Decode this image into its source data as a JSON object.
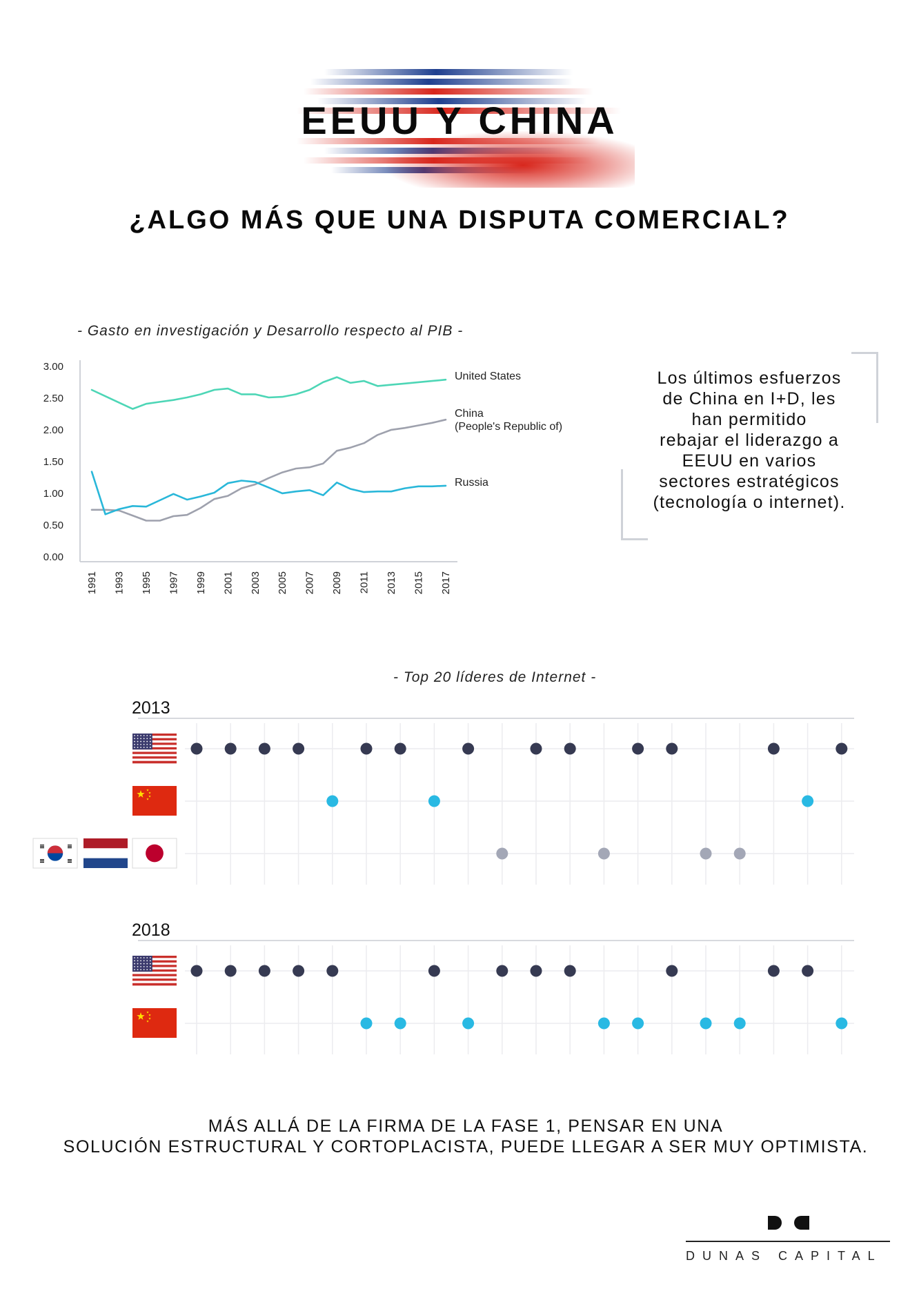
{
  "header": {
    "title": "EEUU Y CHINA",
    "subtitle": "¿ALGO MÁS QUE UNA DISPUTA COMERCIAL?",
    "colors": {
      "blue": "#1f3f8f",
      "red": "#d8261c"
    }
  },
  "rd_chart": {
    "caption": "- Gasto en investigación y Desarrollo respecto al PIB -"
  },
  "side_text": {
    "lines": [
      "Los últimos esfuerzos",
      "de China en I+D, les",
      "han permitido",
      "rebajar el liderazgo a",
      "EEUU en varios",
      "sectores estratégicos",
      "(tecnología o internet)."
    ]
  },
  "internet_chart": {
    "caption": "- Top 20 líderes de Internet -"
  },
  "bottom_text": {
    "line1": "MÁS ALLÁ DE LA FIRMA DE LA FASE 1, PENSAR EN UNA",
    "line2": "SOLUCIÓN ESTRUCTURAL Y CORTOPLACISTA, PUEDE LLEGAR A SER MUY OPTIMISTA."
  },
  "logo": {
    "mark": "DC",
    "text": "DUNAS CAPITAL"
  },
  "chart_data": [
    {
      "type": "line",
      "title": "- Gasto en investigación y Desarrollo respecto al PIB -",
      "xlabel": "",
      "ylabel": "",
      "ylim": [
        0,
        3
      ],
      "yticks": [
        "3.00",
        "2.50",
        "2.00",
        "1.50",
        "1.00",
        "0.50",
        "0.00"
      ],
      "x_tick_labels": [
        "1991",
        "1993",
        "1995",
        "1997",
        "1999",
        "2001",
        "2003",
        "2005",
        "2007",
        "2009",
        "2011",
        "2013",
        "2015",
        "2017"
      ],
      "x": [
        1991,
        1992,
        1993,
        1994,
        1995,
        1996,
        1997,
        1998,
        1999,
        2000,
        2001,
        2002,
        2003,
        2004,
        2005,
        2006,
        2007,
        2008,
        2009,
        2010,
        2011,
        2012,
        2013,
        2014,
        2015,
        2016,
        2017
      ],
      "series": [
        {
          "name": "United States",
          "label": "United States",
          "color": "#4dd6b6",
          "values": [
            2.62,
            2.52,
            2.42,
            2.32,
            2.4,
            2.43,
            2.46,
            2.5,
            2.55,
            2.62,
            2.64,
            2.55,
            2.55,
            2.5,
            2.51,
            2.55,
            2.62,
            2.74,
            2.82,
            2.73,
            2.76,
            2.68,
            2.7,
            2.72,
            2.74,
            2.76,
            2.78
          ]
        },
        {
          "name": "China",
          "label": "China\n(People's Republic of)",
          "color": "#9ea1ad",
          "values": [
            0.73,
            0.73,
            0.72,
            0.64,
            0.56,
            0.56,
            0.63,
            0.65,
            0.76,
            0.9,
            0.95,
            1.07,
            1.13,
            1.23,
            1.32,
            1.38,
            1.4,
            1.46,
            1.66,
            1.71,
            1.78,
            1.91,
            1.99,
            2.02,
            2.06,
            2.1,
            2.15
          ]
        },
        {
          "name": "Russia",
          "label": "Russia",
          "color": "#29b7d9",
          "values": [
            1.33,
            0.66,
            0.74,
            0.79,
            0.78,
            0.88,
            0.98,
            0.89,
            0.94,
            1.0,
            1.15,
            1.19,
            1.17,
            1.08,
            0.99,
            1.02,
            1.04,
            0.96,
            1.16,
            1.06,
            1.01,
            1.02,
            1.02,
            1.07,
            1.1,
            1.1,
            1.11
          ]
        }
      ]
    },
    {
      "type": "scatter",
      "title": "- Top 20 líderes de Internet -",
      "positions": 20,
      "panels": [
        {
          "year": "2013",
          "rows": [
            {
              "name": "United States",
              "flags": [
                "us"
              ],
              "color": "#363a52",
              "ranks": [
                1,
                2,
                3,
                4,
                6,
                7,
                9,
                11,
                12,
                14,
                15,
                18,
                20
              ]
            },
            {
              "name": "China",
              "flags": [
                "cn"
              ],
              "color": "#29b9e3",
              "ranks": [
                5,
                8,
                19
              ]
            },
            {
              "name": "Others",
              "flags": [
                "kr",
                "nl",
                "jp"
              ],
              "color": "#a3a7b6",
              "ranks": [
                10,
                13,
                16,
                17
              ]
            }
          ]
        },
        {
          "year": "2018",
          "rows": [
            {
              "name": "United States",
              "flags": [
                "us"
              ],
              "color": "#363a52",
              "ranks": [
                1,
                2,
                3,
                4,
                5,
                8,
                10,
                11,
                12,
                15,
                18,
                19
              ]
            },
            {
              "name": "China",
              "flags": [
                "cn"
              ],
              "color": "#29b9e3",
              "ranks": [
                6,
                7,
                9,
                13,
                14,
                16,
                17,
                20
              ]
            }
          ]
        }
      ]
    }
  ]
}
